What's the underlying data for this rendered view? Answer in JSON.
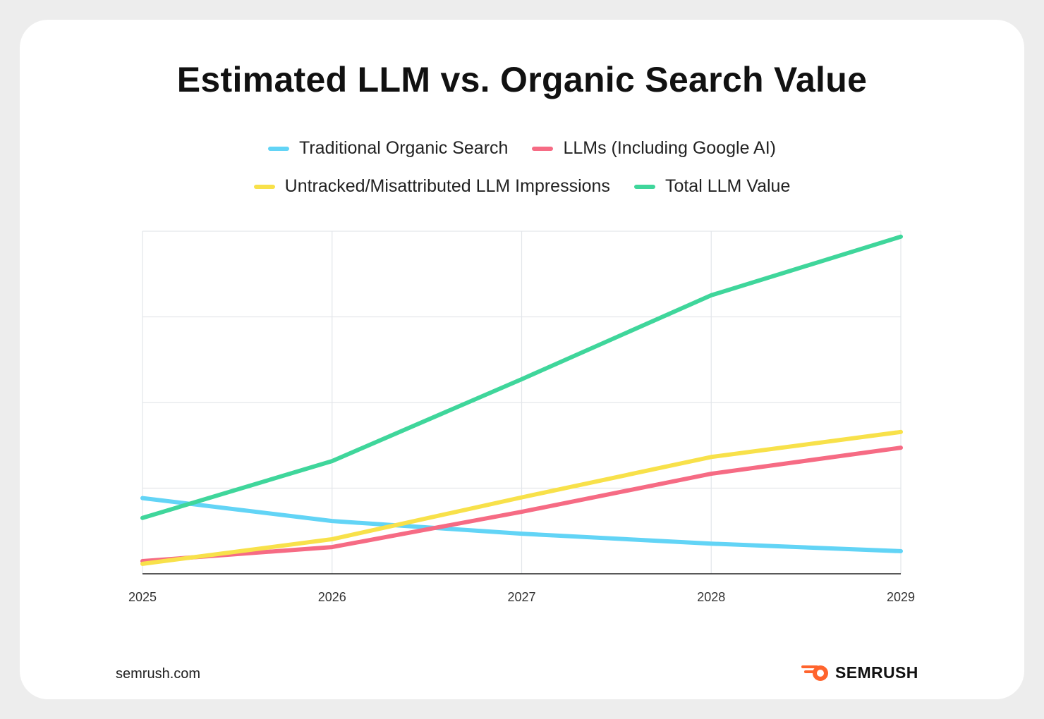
{
  "title": "Estimated LLM vs. Organic Search Value",
  "legend": [
    {
      "label": "Traditional Organic Search",
      "color": "#62d4f6"
    },
    {
      "label": "LLMs (Including Google AI)",
      "color": "#f66b84"
    },
    {
      "label": "Untracked/Misattributed LLM Impressions",
      "color": "#f8e14a"
    },
    {
      "label": "Total LLM Value",
      "color": "#3fd69b"
    }
  ],
  "chart_data": {
    "type": "line",
    "title": "Estimated LLM vs. Organic Search Value",
    "x": [
      "2025",
      "2026",
      "2027",
      "2028",
      "2029"
    ],
    "xlabel": "",
    "ylabel": "",
    "ylim": [
      0,
      100
    ],
    "grid": true,
    "legend_position": "top",
    "series": [
      {
        "name": "Traditional Organic Search",
        "color": "#62d4f6",
        "values": [
          22.1,
          15.4,
          11.7,
          8.8,
          6.6
        ]
      },
      {
        "name": "LLMs (Including Google AI)",
        "color": "#f66b84",
        "values": [
          3.7,
          7.8,
          18.1,
          29.2,
          36.8
        ]
      },
      {
        "name": "Untracked/Misattributed LLM Impressions",
        "color": "#f8e14a",
        "values": [
          2.9,
          10.1,
          22.3,
          34.1,
          41.4
        ]
      },
      {
        "name": "Total LLM Value",
        "color": "#3fd69b",
        "values": [
          16.3,
          32.9,
          56.8,
          81.3,
          98.4
        ]
      }
    ]
  },
  "footer": {
    "site": "semrush.com",
    "brand": "SEMRUSH"
  },
  "colors": {
    "brand_orange": "#ff642d",
    "grid": "#e3e6ea",
    "axis": "#222222"
  }
}
